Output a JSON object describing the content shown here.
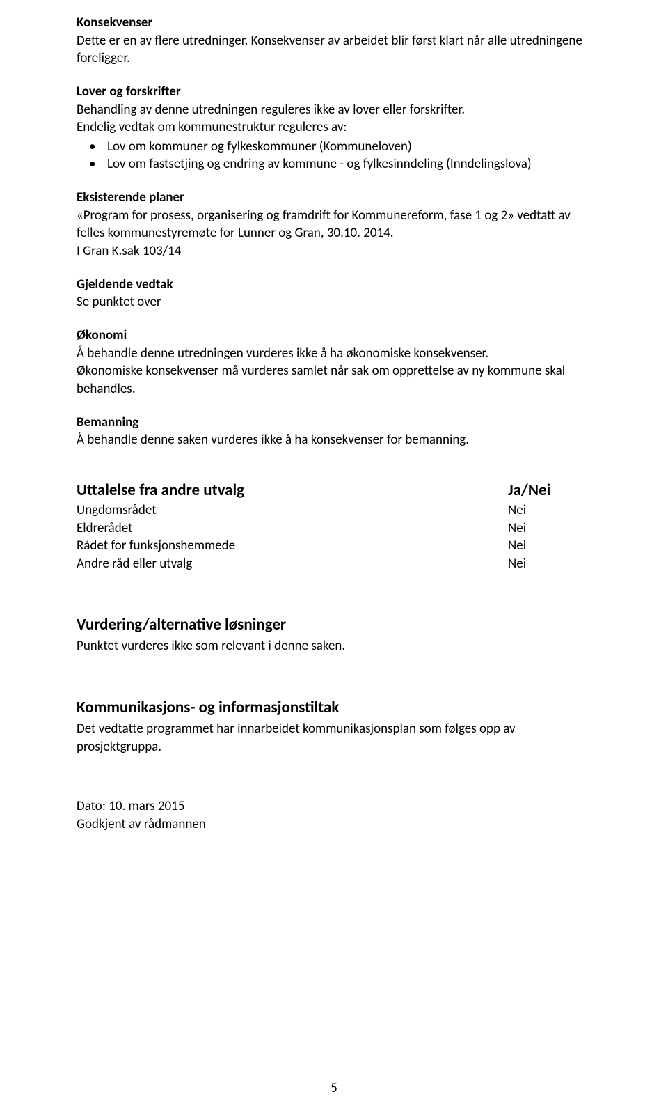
{
  "konsekvenser": {
    "heading": "Konsekvenser",
    "text": "Dette er en av flere utredninger. Konsekvenser av arbeidet blir først klart når alle utredningene foreligger."
  },
  "lover": {
    "heading": "Lover og forskrifter",
    "p1": "Behandling av denne utredningen reguleres ikke av lover eller forskrifter.",
    "p2": "Endelig vedtak om kommunestruktur reguleres av:",
    "bullets": [
      "Lov om kommuner og fylkeskommuner (Kommuneloven)",
      "Lov om fastsetjing og endring av kommune - og fylkesinndeling (Inndelingslova)"
    ]
  },
  "eksisterende": {
    "heading": "Eksisterende planer",
    "p1": "«Program for prosess, organisering og framdrift for Kommunereform, fase 1 og 2» vedtatt av felles kommunestyremøte for Lunner og Gran, 30.10. 2014.",
    "p2": "I Gran K.sak 103/14"
  },
  "gjeldende": {
    "heading": "Gjeldende vedtak",
    "text": "Se punktet over"
  },
  "okonomi": {
    "heading": "Økonomi",
    "p1": "Å behandle denne utredningen vurderes ikke å ha økonomiske konsekvenser.",
    "p2": "Økonomiske konsekvenser må vurderes samlet når sak om opprettelse av ny kommune skal behandles."
  },
  "bemanning": {
    "heading": "Bemanning",
    "text": "Å behandle denne saken vurderes ikke å ha konsekvenser for bemanning."
  },
  "uttalelse": {
    "heading_left": "Uttalelse fra andre utvalg",
    "heading_right": "Ja/Nei",
    "rows": [
      {
        "label": "Ungdomsrådet",
        "value": "Nei"
      },
      {
        "label": "Eldrerådet",
        "value": "Nei"
      },
      {
        "label": "Rådet for funksjonshemmede",
        "value": "Nei"
      },
      {
        "label": "Andre råd eller utvalg",
        "value": "Nei"
      }
    ]
  },
  "vurdering": {
    "heading": "Vurdering/alternative løsninger",
    "text": "Punktet vurderes ikke som relevant i denne saken."
  },
  "kommunikasjon": {
    "heading": "Kommunikasjons- og informasjonstiltak",
    "text": "Det vedtatte programmet har innarbeidet kommunikasjonsplan som følges opp av prosjektgruppa."
  },
  "footer": {
    "dato": "Dato: 10. mars 2015",
    "godkjent": "Godkjent av rådmannen"
  },
  "page_number": "5"
}
